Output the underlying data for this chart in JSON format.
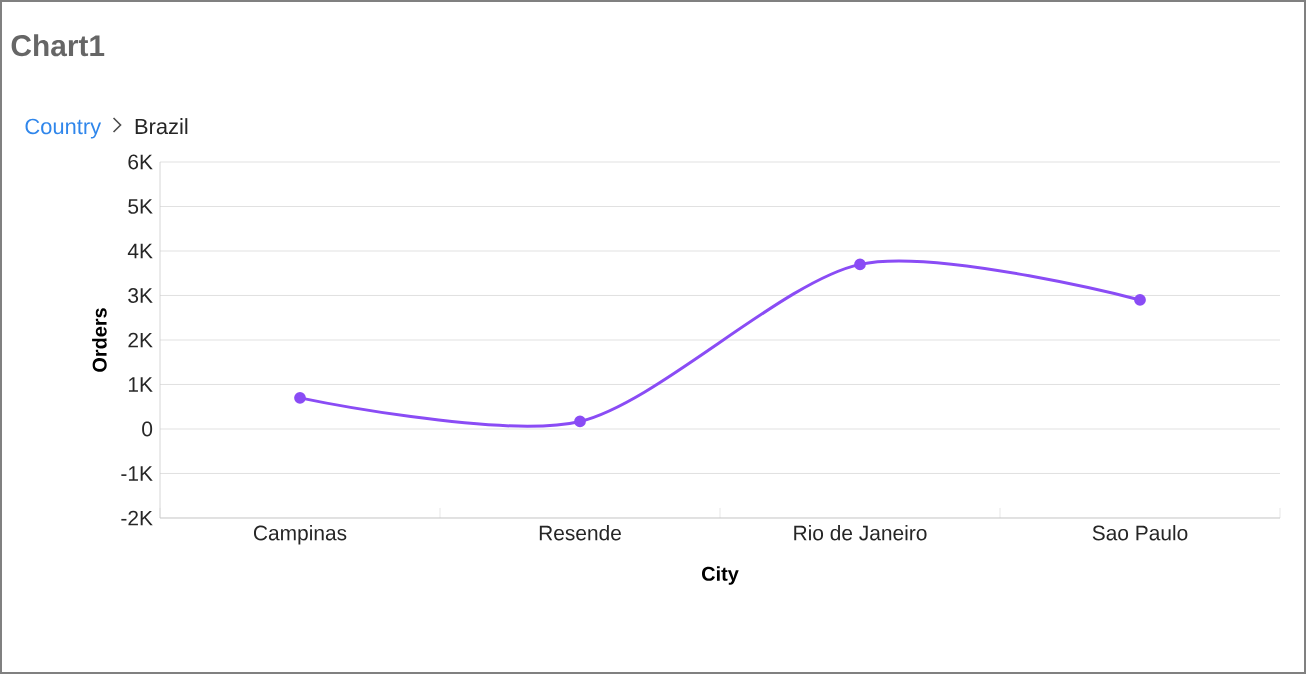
{
  "chart_data": {
    "type": "line",
    "title": "Chart1",
    "annotations": [
      "Country",
      "Brazil"
    ],
    "xlabel": "City",
    "ylabel": "Orders",
    "categories": [
      "Campinas",
      "Resende",
      "Rio de Janeiro",
      "Sao Paulo"
    ],
    "series": [
      {
        "color": "#8a4cf5",
        "values": [
          700,
          170,
          3700,
          2900
        ]
      }
    ],
    "ylim": [
      -2000,
      6000
    ],
    "yticks": [
      {
        "value": -2000,
        "label": "-2K"
      },
      {
        "value": -1000,
        "label": "-1K"
      },
      0,
      {
        "value": 1000,
        "label": "1K"
      },
      {
        "value": 2000,
        "label": "2K"
      },
      {
        "value": 3000,
        "label": "3K"
      },
      {
        "value": 4000,
        "label": "4K"
      },
      {
        "value": 5000,
        "label": "5K"
      },
      {
        "value": 6000,
        "label": "6K"
      }
    ],
    "grid": "y",
    "marker": "circle",
    "line_style": "solid"
  }
}
